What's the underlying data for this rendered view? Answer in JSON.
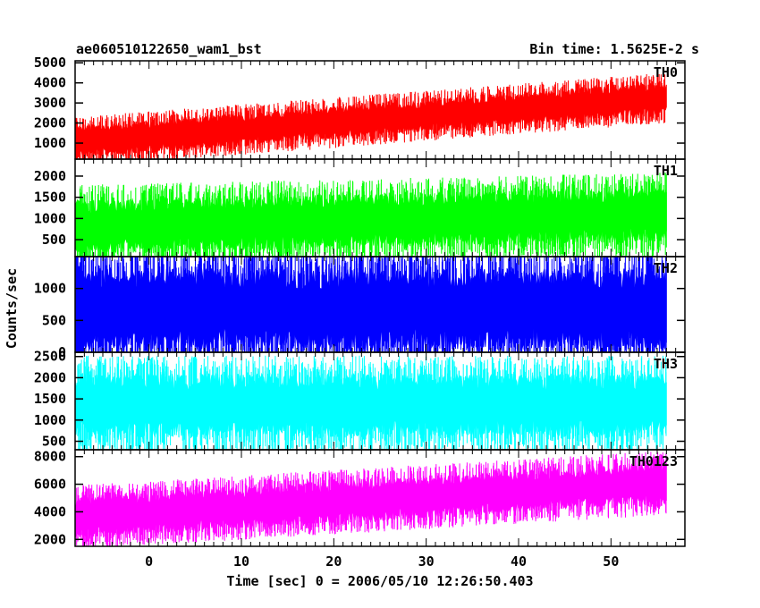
{
  "chart_data": {
    "type": "line",
    "title": "ae060510122650_wam1_bst",
    "bin_time_label": "Bin time: 1.5625E-2 s",
    "xlabel": "Time [sec] 0 = 2006/05/10 12:26:50.403",
    "ylabel": "Counts/sec",
    "xlim": [
      -8,
      58
    ],
    "xticks": [
      0,
      10,
      20,
      30,
      40,
      50
    ],
    "x_data_range": [
      -8,
      56
    ],
    "panels": [
      {
        "name": "TH0",
        "color": "#ff0000",
        "ylim": [
          200,
          5100
        ],
        "yticks": [
          1000,
          2000,
          3000,
          4000,
          5000
        ],
        "trend_start": 1050,
        "trend_end": 3250,
        "noise_amplitude": 700
      },
      {
        "name": "TH1",
        "color": "#00ff00",
        "ylim": [
          100,
          2400
        ],
        "yticks": [
          500,
          1000,
          1500,
          2000
        ],
        "trend_start": 800,
        "trend_end": 1100,
        "noise_amplitude": 550
      },
      {
        "name": "TH2",
        "color": "#0000ff",
        "ylim": [
          0,
          1500
        ],
        "yticks": [
          0,
          500,
          1000
        ],
        "trend_start": 680,
        "trend_end": 680,
        "noise_amplitude": 550
      },
      {
        "name": "TH3",
        "color": "#00ffff",
        "ylim": [
          300,
          2600
        ],
        "yticks": [
          500,
          1000,
          1500,
          2000,
          2500
        ],
        "trend_start": 1350,
        "trend_end": 1350,
        "noise_amplitude": 650
      },
      {
        "name": "TH0123",
        "color": "#ff00ff",
        "ylim": [
          1500,
          8500
        ],
        "yticks": [
          2000,
          4000,
          6000,
          8000
        ],
        "trend_start": 3600,
        "trend_end": 6100,
        "noise_amplitude": 1300
      }
    ]
  }
}
